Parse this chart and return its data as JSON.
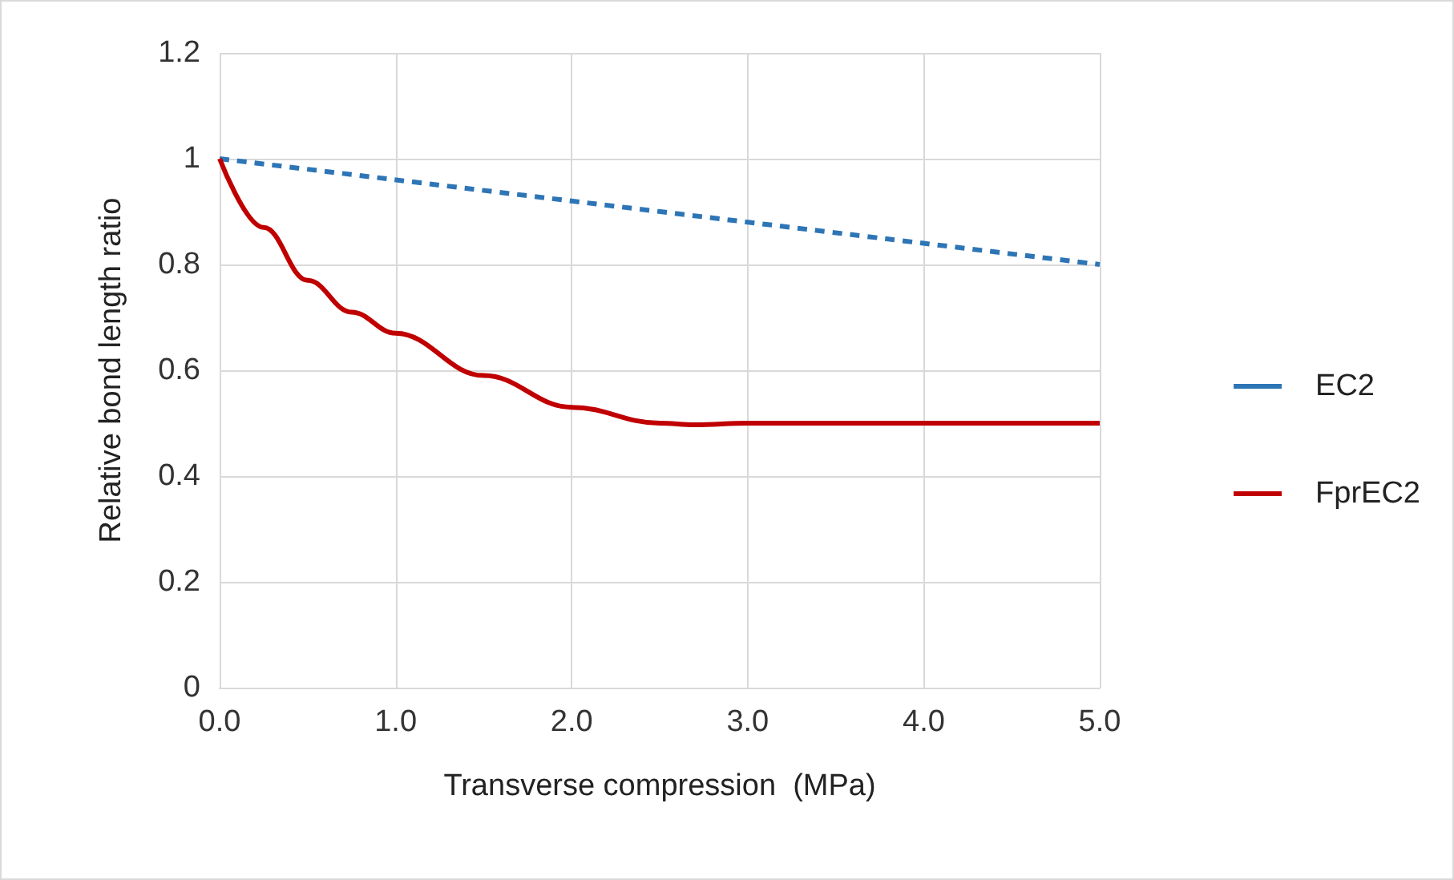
{
  "chart_data": {
    "type": "line",
    "xlabel": "Transverse compression  (MPa)",
    "ylabel": "Relative bond length ratio",
    "xlim": [
      0,
      5
    ],
    "xticks": [
      {
        "value": 0,
        "label": "0.0"
      },
      {
        "value": 1,
        "label": "1.0"
      },
      {
        "value": 2,
        "label": "2.0"
      },
      {
        "value": 3,
        "label": "3.0"
      },
      {
        "value": 4,
        "label": "4.0"
      },
      {
        "value": 5,
        "label": "5.0"
      }
    ],
    "ylim": [
      0,
      1.2
    ],
    "yticks": [
      0,
      0.2,
      0.4,
      0.6,
      0.8,
      1,
      1.2
    ],
    "grid": true,
    "legend": "right",
    "marker": "none",
    "series": [
      {
        "name": "EC2",
        "color": "#2e75b6",
        "line_style": "dashed",
        "x": [
          0,
          5
        ],
        "values": [
          1,
          0.8
        ]
      },
      {
        "name": "FprEC2",
        "color": "#c00000",
        "line_style": "solid",
        "x": [
          0,
          0.25,
          0.5,
          0.75,
          1,
          1.5,
          2,
          2.5,
          2.7,
          3,
          4,
          5
        ],
        "values": [
          1,
          0.87,
          0.77,
          0.71,
          0.67,
          0.59,
          0.53,
          0.5,
          0.497,
          0.5,
          0.5,
          0.5
        ]
      }
    ]
  }
}
